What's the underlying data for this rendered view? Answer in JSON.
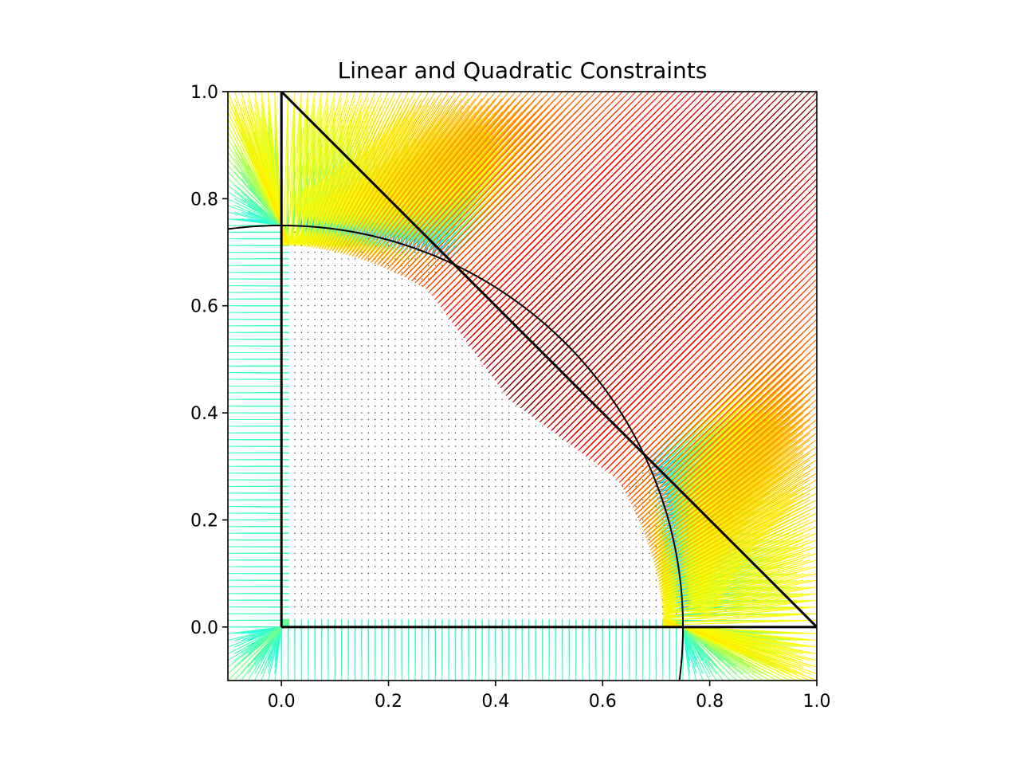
{
  "chart_data": {
    "type": "quiver",
    "title": "Linear and Quadratic Constraints",
    "xlabel": "",
    "ylabel": "",
    "xlim": [
      -0.1,
      1.0
    ],
    "ylim": [
      -0.1,
      1.0
    ],
    "x_ticks": [
      0.0,
      0.2,
      0.4,
      0.6,
      0.8,
      1.0
    ],
    "y_ticks": [
      0.0,
      0.2,
      0.4,
      0.6,
      0.8,
      1.0
    ],
    "x_tick_labels": [
      "0.0",
      "0.2",
      "0.4",
      "0.6",
      "0.8",
      "1.0"
    ],
    "y_tick_labels": [
      "0.0",
      "0.2",
      "0.4",
      "0.6",
      "0.8",
      "1.0"
    ],
    "colormap": "jet",
    "grid": false,
    "constraints": {
      "linear": [
        {
          "kind": "segment",
          "from": [
            0.0,
            0.0
          ],
          "to": [
            0.0,
            1.0
          ]
        },
        {
          "kind": "segment",
          "from": [
            0.0,
            0.0
          ],
          "to": [
            1.0,
            0.0
          ]
        },
        {
          "kind": "segment",
          "from": [
            0.0,
            1.0
          ],
          "to": [
            1.0,
            0.0
          ]
        }
      ],
      "quadratic": {
        "kind": "circle",
        "center": [
          0.0,
          0.0
        ],
        "radius": 0.75
      }
    },
    "intersection_points": [
      [
        0.323,
        0.677
      ],
      [
        0.677,
        0.323
      ]
    ],
    "field_description": "projection displacement vectors from grid points onto the feasible region"
  }
}
